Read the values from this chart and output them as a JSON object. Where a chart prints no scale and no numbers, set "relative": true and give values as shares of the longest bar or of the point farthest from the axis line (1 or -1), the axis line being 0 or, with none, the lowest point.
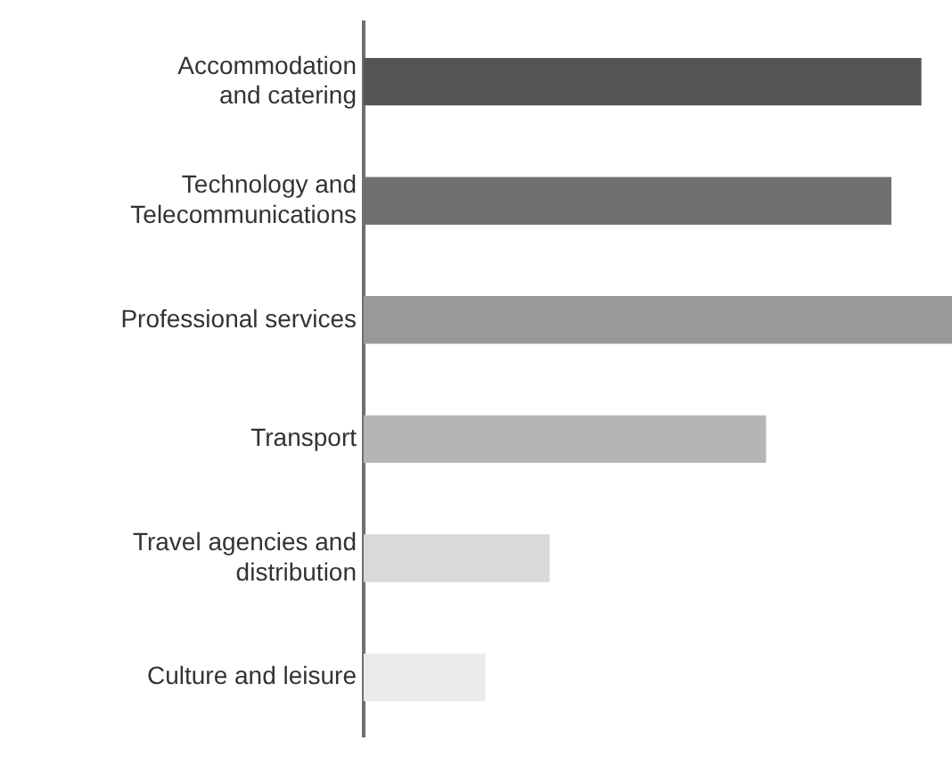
{
  "chart_data": {
    "type": "bar",
    "orientation": "horizontal",
    "relative": true,
    "categories": [
      "Accommodation\nand catering",
      "Technology and\nTelecommunications",
      "Professional services",
      "Transport",
      "Travel agencies and\ndistribution",
      "Culture and leisure"
    ],
    "values": [
      0.948,
      0.897,
      1,
      0.684,
      0.316,
      0.207
    ],
    "colors": [
      "#555555",
      "#707070",
      "#999999",
      "#b5b5b5",
      "#d9d9d9",
      "#ebebeb"
    ],
    "legend": false
  }
}
